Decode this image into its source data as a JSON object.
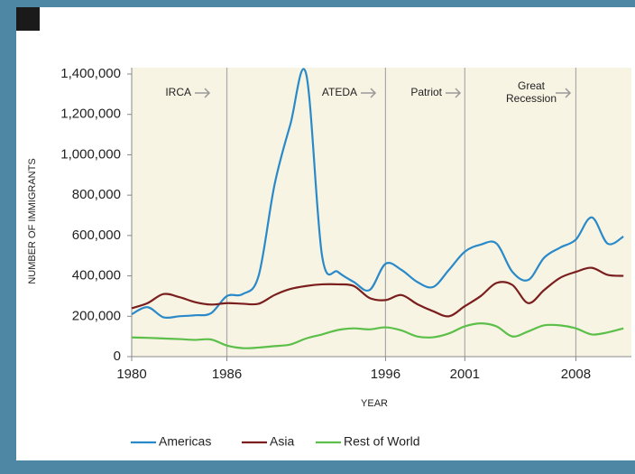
{
  "chart_data": {
    "type": "line",
    "x_label": "YEAR",
    "y_label": "NUMBER OF IMMIGRANTS",
    "annotations": [
      "IRCA",
      "ATEDA",
      "Patriot",
      "Great Recession"
    ],
    "x": [
      1980,
      1981,
      1982,
      1983,
      1984,
      1985,
      1986,
      1987,
      1988,
      1989,
      1990,
      1991,
      1992,
      1993,
      1994,
      1995,
      1996,
      1997,
      1998,
      1999,
      2000,
      2001,
      2002,
      2003,
      2004,
      2005,
      2006,
      2007,
      2008,
      2009,
      2010,
      2011
    ],
    "series": [
      {
        "name": "Americas",
        "color": "#2a8ac9",
        "values": [
          210000,
          245000,
          195000,
          200000,
          205000,
          215000,
          300000,
          310000,
          400000,
          850000,
          1150000,
          1400000,
          500000,
          420000,
          370000,
          330000,
          460000,
          430000,
          370000,
          345000,
          430000,
          520000,
          555000,
          560000,
          420000,
          380000,
          490000,
          540000,
          580000,
          690000,
          560000,
          595000
        ]
      },
      {
        "name": "Asia",
        "color": "#7a1e1e",
        "values": [
          240000,
          265000,
          310000,
          295000,
          270000,
          258000,
          265000,
          262000,
          262000,
          305000,
          335000,
          350000,
          358000,
          358000,
          350000,
          290000,
          280000,
          305000,
          260000,
          225000,
          200000,
          250000,
          300000,
          365000,
          355000,
          265000,
          330000,
          390000,
          420000,
          440000,
          405000,
          400000
        ]
      },
      {
        "name": "Rest of World",
        "color": "#5cbf4a",
        "values": [
          95000,
          93000,
          90000,
          87000,
          83000,
          85000,
          55000,
          42000,
          45000,
          52000,
          60000,
          90000,
          110000,
          132000,
          140000,
          135000,
          145000,
          130000,
          100000,
          96000,
          115000,
          150000,
          165000,
          150000,
          100000,
          125000,
          155000,
          155000,
          140000,
          110000,
          120000,
          140000
        ]
      }
    ],
    "xlim": [
      1980,
      2011.5
    ],
    "xticks": [
      1980,
      1986,
      1996,
      2001,
      2008
    ],
    "ylim": [
      0,
      1400000
    ],
    "yticks": [
      0,
      {
        "value": 200000,
        "label": "200,000"
      },
      {
        "value": 400000,
        "label": "400,000"
      },
      {
        "value": 600000,
        "label": "600,000"
      },
      {
        "value": 800000,
        "label": "800,000"
      },
      {
        "value": 1000000,
        "label": "1,000,000"
      },
      {
        "value": 1200000,
        "label": "1,200,000"
      },
      {
        "value": 1400000,
        "label": "1,400,000"
      }
    ],
    "grid": true,
    "legend": "bottom"
  }
}
